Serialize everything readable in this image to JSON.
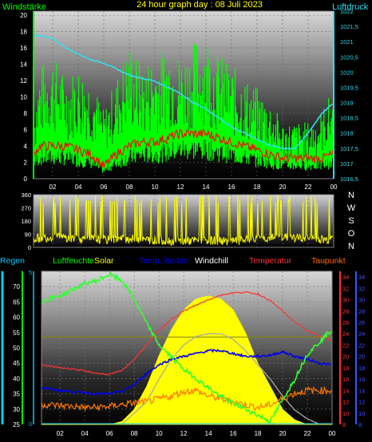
{
  "panel1": {
    "title": "24 hour graph day : 08 Juli 2023",
    "left_label": "Windstärke",
    "right_label": "Luftdruck",
    "x_ticks": [
      "02",
      "04",
      "06",
      "08",
      "10",
      "12",
      "14",
      "16",
      "18",
      "20",
      "22",
      "00"
    ],
    "left_ticks": [
      "0",
      "2",
      "4",
      "6",
      "8",
      "10",
      "12",
      "14",
      "16",
      "18",
      "20"
    ],
    "right_ticks": [
      "1016,5",
      "1017",
      "1017,5",
      "1018",
      "1018,5",
      "1019",
      "1019,5",
      "1020",
      "1020,5",
      "1021",
      "1021,5",
      "1022"
    ],
    "colors": {
      "wind_gust": "#00ff00",
      "wind_avg": "#ff0000",
      "pressure": "#33ddee",
      "left_label": "#00ff00",
      "right_label": "#33ddee",
      "title": "#ffff00"
    }
  },
  "panel2": {
    "left_ticks": [
      "0",
      "90",
      "180",
      "270",
      "360"
    ],
    "right_letters": [
      "N",
      "W",
      "S",
      "O",
      "N"
    ],
    "colors": {
      "direction": "#ffff00",
      "letters": "#ffffff"
    }
  },
  "panel3": {
    "legend": [
      {
        "label": "Regen",
        "color": "#00ccff"
      },
      {
        "label": "Luftfeuchte",
        "color": "#00ff00"
      },
      {
        "label": "Solar",
        "color": "#ffff00"
      },
      {
        "label": "Temp. Boden",
        "color": "#0000ff"
      },
      {
        "label": "Windchill",
        "color": "#ffffff"
      },
      {
        "label": "Temperatur",
        "color": "#ff3333"
      },
      {
        "label": "Taupunkt",
        "color": "#ff6600"
      }
    ],
    "x_ticks": [
      "02",
      "04",
      "06",
      "08",
      "10",
      "12",
      "14",
      "16",
      "18",
      "20",
      "22",
      "00"
    ],
    "hum_ticks": [
      "25",
      "30",
      "35",
      "40",
      "45",
      "50",
      "55",
      "60",
      "65",
      "70"
    ],
    "temp_ticks": [
      "8",
      "10",
      "12",
      "14",
      "16",
      "18",
      "20",
      "22",
      "24",
      "26",
      "28",
      "30",
      "32",
      "34"
    ],
    "rain_ticks": [
      "0",
      "5"
    ]
  },
  "chart_data": [
    {
      "type": "line",
      "title": "24 hour graph day : 08 Juli 2023",
      "ylabel": "Windstärke",
      "y2label": "Luftdruck",
      "xlim": [
        0.5,
        24
      ],
      "ylim": [
        0,
        20.5
      ],
      "y2lim": [
        1016.5,
        1022
      ],
      "series": [
        {
          "name": "Wind gust",
          "x": [
            0.5,
            1,
            2,
            3,
            4,
            5,
            6,
            7,
            8,
            9,
            10,
            11,
            12,
            13,
            14,
            15,
            16,
            17,
            18,
            19,
            20,
            21,
            22,
            23,
            24
          ],
          "y": [
            6,
            10,
            11,
            9,
            10,
            9,
            6,
            9,
            12,
            10,
            11,
            12,
            11,
            12,
            13,
            11,
            10,
            9,
            8,
            7,
            5,
            5,
            5,
            6,
            8
          ]
        },
        {
          "name": "Wind average",
          "x": [
            0.5,
            1,
            2,
            3,
            4,
            5,
            6,
            7,
            8,
            9,
            10,
            11,
            12,
            13,
            14,
            15,
            16,
            17,
            18,
            19,
            20,
            21,
            22,
            23,
            24
          ],
          "y": [
            3,
            4,
            4,
            4,
            3.5,
            3,
            1.5,
            3,
            4,
            4.5,
            4.5,
            5,
            5.5,
            5.5,
            5.5,
            5,
            4.5,
            4,
            3.5,
            3,
            2.5,
            2.5,
            2.5,
            2.5,
            3
          ]
        },
        {
          "name": "Luftdruck",
          "axis": "y2",
          "x": [
            0.5,
            1,
            2,
            3,
            4,
            5,
            6,
            7,
            8,
            9,
            10,
            11,
            12,
            13,
            14,
            15,
            16,
            17,
            18,
            19,
            20,
            21,
            22,
            23,
            24
          ],
          "y": [
            1021.2,
            1021.2,
            1021.1,
            1020.8,
            1020.6,
            1020.4,
            1020.3,
            1020.1,
            1019.9,
            1019.8,
            1019.7,
            1019.5,
            1019.3,
            1019.0,
            1018.8,
            1018.5,
            1018.2,
            1018.0,
            1017.8,
            1017.6,
            1017.5,
            1017.5,
            1018.0,
            1018.6,
            1019.0
          ]
        }
      ]
    },
    {
      "type": "line",
      "title": "",
      "ylabel": "",
      "xlim": [
        0.5,
        24
      ],
      "ylim": [
        0,
        360
      ],
      "series": [
        {
          "name": "Windrichtung",
          "x": [
            0.5,
            2,
            4,
            6,
            8,
            10,
            12,
            14,
            16,
            18,
            20,
            22,
            24
          ],
          "y": [
            60,
            70,
            60,
            50,
            60,
            50,
            40,
            50,
            40,
            60,
            70,
            60,
            50
          ]
        }
      ]
    },
    {
      "type": "area",
      "title": "",
      "xlim": [
        0.5,
        24
      ],
      "ylim": [
        25,
        75
      ],
      "y2lim": [
        8,
        35
      ],
      "series": [
        {
          "name": "Luftfeuchte",
          "axis": "hum",
          "x": [
            0.5,
            1,
            2,
            3,
            4,
            5,
            6,
            7,
            8,
            9,
            10,
            11,
            12,
            13,
            14,
            15,
            16,
            17,
            18,
            19,
            20,
            21,
            22,
            23,
            24
          ],
          "y": [
            65,
            66,
            67,
            69,
            71,
            72,
            74,
            72,
            66,
            58,
            51,
            47,
            43,
            40,
            37,
            34,
            32,
            30,
            28,
            26,
            33,
            40,
            48,
            52,
            56
          ]
        },
        {
          "name": "Solar",
          "axis": "solar",
          "x": [
            0.5,
            2,
            4,
            5,
            6,
            7,
            8,
            9,
            10,
            11,
            12,
            13,
            14,
            15,
            16,
            17,
            18,
            19,
            20,
            21,
            22,
            24
          ],
          "y": [
            0,
            0,
            0,
            0,
            0,
            2,
            10,
            25,
            45,
            62,
            75,
            82,
            84,
            82,
            75,
            60,
            40,
            25,
            10,
            3,
            0,
            0
          ]
        },
        {
          "name": "Temp. Boden",
          "axis": "temp",
          "x": [
            0.5,
            1,
            2,
            3,
            4,
            5,
            6,
            7,
            8,
            9,
            10,
            11,
            12,
            13,
            14,
            15,
            16,
            17,
            18,
            19,
            20,
            21,
            22,
            23,
            24
          ],
          "y": [
            14.5,
            14.3,
            14.0,
            13.8,
            13.6,
            13.4,
            13.4,
            13.8,
            15.0,
            17.0,
            18.5,
            19.5,
            20.0,
            20.5,
            21.0,
            21.0,
            20.5,
            20.0,
            20.0,
            20.2,
            20.8,
            20.0,
            19.5,
            18.8,
            18.5
          ]
        },
        {
          "name": "Windchill",
          "axis": "temp",
          "x": [
            7,
            9,
            10,
            11,
            12,
            13,
            14,
            15,
            16,
            17,
            18,
            19,
            20,
            21,
            22,
            23
          ],
          "y": [
            8,
            12,
            16,
            19.5,
            22,
            23.5,
            24,
            24,
            23,
            21,
            18.5,
            16,
            13,
            10.5,
            9,
            8
          ]
        },
        {
          "name": "Temperatur",
          "axis": "temp",
          "x": [
            0.5,
            1,
            2,
            3,
            4,
            5,
            6,
            7,
            8,
            9,
            10,
            11,
            12,
            13,
            14,
            15,
            16,
            17,
            18,
            19,
            20,
            21,
            22,
            23,
            24
          ],
          "y": [
            18.5,
            18.3,
            18.0,
            17.8,
            17.4,
            17.0,
            16.8,
            17.5,
            19.5,
            22.0,
            24.5,
            26.5,
            28.0,
            29.0,
            30.0,
            30.8,
            31.2,
            31.3,
            31.0,
            29.8,
            28.0,
            26.0,
            24.5,
            23.5,
            22.8
          ]
        },
        {
          "name": "Taupunkt",
          "axis": "temp",
          "x": [
            0.5,
            1,
            2,
            3,
            4,
            5,
            6,
            7,
            8,
            9,
            10,
            11,
            12,
            13,
            14,
            15,
            16,
            17,
            18,
            19,
            20,
            21,
            22,
            23,
            24
          ],
          "y": [
            11.5,
            11.5,
            11.3,
            11.2,
            11.0,
            11.0,
            11.2,
            11.5,
            11.8,
            12.0,
            12.5,
            13.0,
            13.8,
            14.0,
            13.0,
            12.5,
            12.0,
            11.5,
            11.0,
            11.5,
            12.5,
            13.5,
            14.0,
            14.0,
            14.0
          ]
        },
        {
          "name": "Regen",
          "axis": "rain",
          "x": [
            0.5,
            24
          ],
          "y": [
            0,
            0
          ]
        }
      ]
    }
  ]
}
